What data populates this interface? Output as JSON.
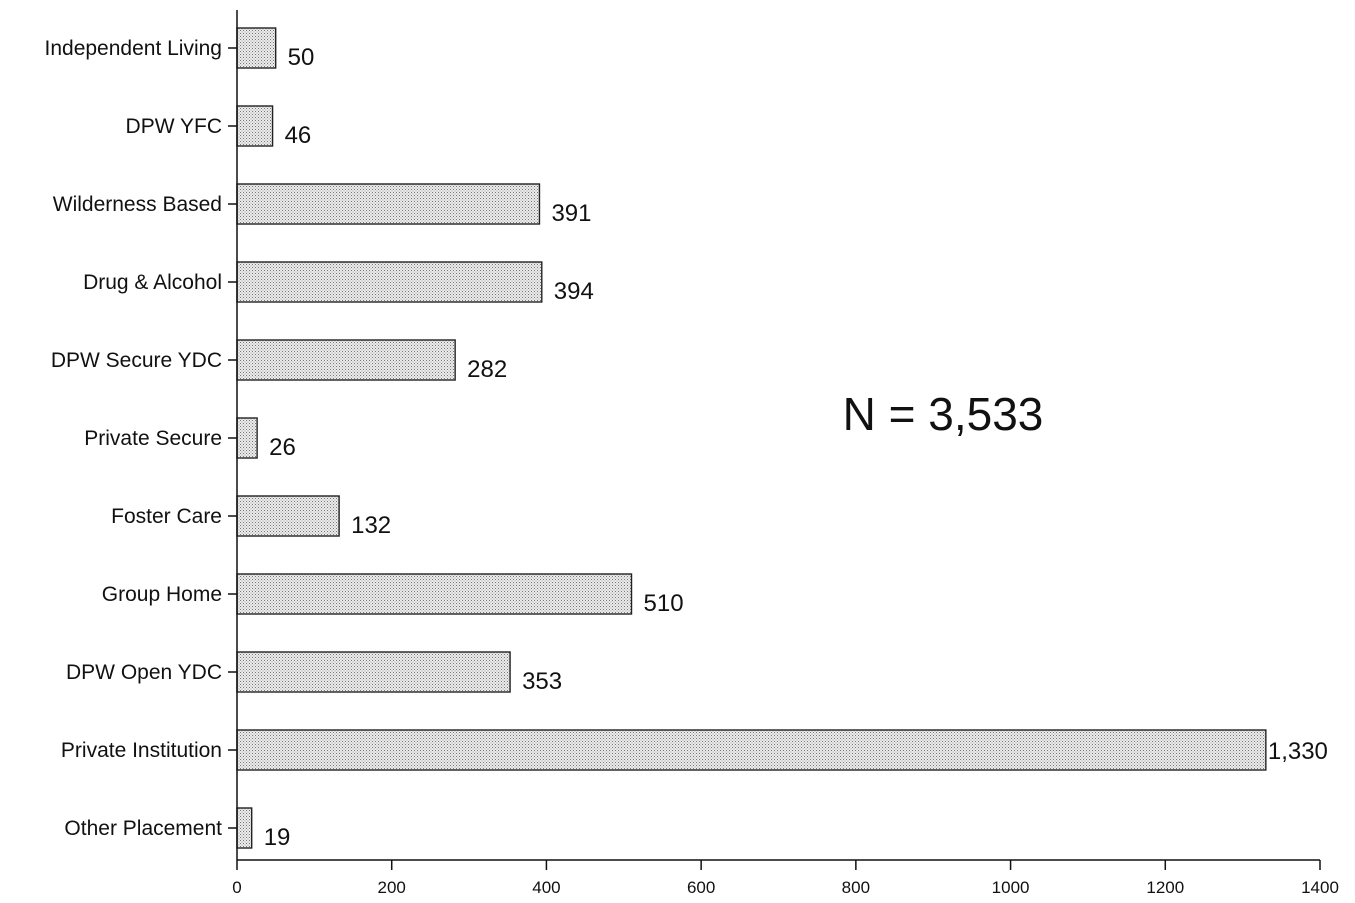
{
  "chart_data": {
    "type": "bar",
    "orientation": "horizontal",
    "categories": [
      "Independent Living",
      "DPW YFC",
      "Wilderness Based",
      "Drug & Alcohol",
      "DPW Secure YDC",
      "Private Secure",
      "Foster Care",
      "Group Home",
      "DPW Open YDC",
      "Private Institution",
      "Other Placement"
    ],
    "values": [
      50,
      46,
      391,
      394,
      282,
      26,
      132,
      510,
      353,
      1330,
      19
    ],
    "value_labels": [
      "50",
      "46",
      "391",
      "394",
      "282",
      "26",
      "132",
      "510",
      "353",
      "1,330",
      "19"
    ],
    "xlim": [
      0,
      1400
    ],
    "xticks": [
      0,
      200,
      400,
      600,
      800,
      1000,
      1200,
      1400
    ],
    "annotation": "N = 3,533",
    "grid": false,
    "legend": "none",
    "bar_fill": "#d9d9d9",
    "bar_stroke": "#222222"
  }
}
